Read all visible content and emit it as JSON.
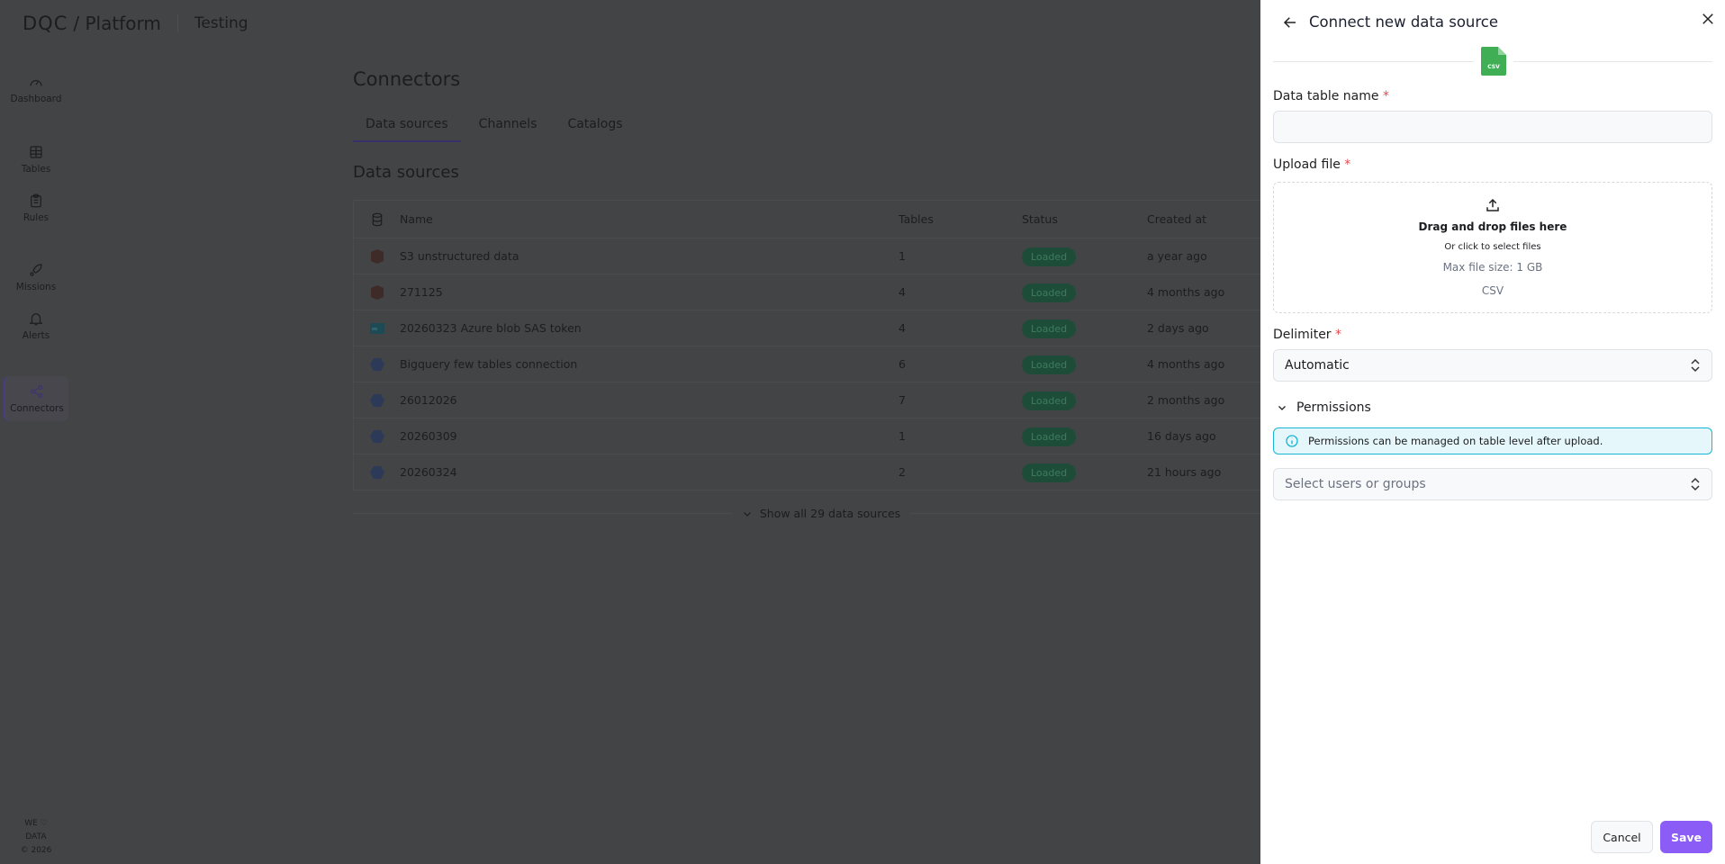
{
  "header": {
    "logo": "DQC",
    "product": "/ Platform",
    "environment": "Testing"
  },
  "sidebar": {
    "items": [
      {
        "label": "Dashboard",
        "icon": "gauge-icon"
      },
      {
        "label": "Tables",
        "icon": "table-icon"
      },
      {
        "label": "Rules",
        "icon": "clipboard-icon"
      },
      {
        "label": "Missions",
        "icon": "rocket-icon"
      },
      {
        "label": "Alerts",
        "icon": "bell-icon"
      },
      {
        "label": "Connectors",
        "icon": "share-icon",
        "active": true
      }
    ],
    "footer": {
      "line1": "WE",
      "line2": "DATA",
      "line3": "© 2026"
    }
  },
  "main": {
    "title": "Connectors",
    "tabs": [
      {
        "label": "Data sources",
        "active": true
      },
      {
        "label": "Channels"
      },
      {
        "label": "Catalogs"
      }
    ],
    "section_title": "Data sources",
    "columns": [
      "Name",
      "Tables",
      "Status",
      "Created at"
    ],
    "rows": [
      {
        "name": "S3 unstructured data",
        "tables": "1",
        "status": "Loaded",
        "created": "a year ago",
        "icon": "s3",
        "color": "#8b2a1e"
      },
      {
        "name": "271125",
        "tables": "4",
        "status": "Loaded",
        "created": "4 months ago",
        "icon": "s3",
        "color": "#8b2a1e"
      },
      {
        "name": "20260323 Azure blob SAS token",
        "tables": "4",
        "status": "Loaded",
        "created": "2 days ago",
        "icon": "azure-blob",
        "color": "#0e6f86"
      },
      {
        "name": "Bigquery few tables connection",
        "tables": "6",
        "status": "Loaded",
        "created": "4 months ago",
        "icon": "bigquery",
        "color": "#2d4f8f"
      },
      {
        "name": "26012026",
        "tables": "7",
        "status": "Loaded",
        "created": "2 months ago",
        "icon": "bigquery",
        "color": "#2d4f8f"
      },
      {
        "name": "20260309",
        "tables": "1",
        "status": "Loaded",
        "created": "16 days ago",
        "icon": "bigquery",
        "color": "#2d4f8f"
      },
      {
        "name": "20260324",
        "tables": "2",
        "status": "Loaded",
        "created": "21 hours ago",
        "icon": "bigquery",
        "color": "#2d4f8f"
      }
    ],
    "show_all": "Show all 29 data sources"
  },
  "panel": {
    "title": "Connect new data source",
    "file_type_badge": "CSV",
    "table_name_label": "Data table name",
    "table_name_value": "",
    "upload_label": "Upload file",
    "drop_title": "Drag and drop files here",
    "drop_sub": "Or click to select files",
    "max_size": "Max file size: 1 GB",
    "accepted": "CSV",
    "delimiter_label": "Delimiter",
    "delimiter_value": "Automatic",
    "permissions_label": "Permissions",
    "permissions_info": "Permissions can be managed on table level after upload.",
    "users_placeholder": "Select users or groups",
    "cancel": "Cancel",
    "save": "Save",
    "required_mark": "*",
    "accent": "#8b5cf6"
  }
}
